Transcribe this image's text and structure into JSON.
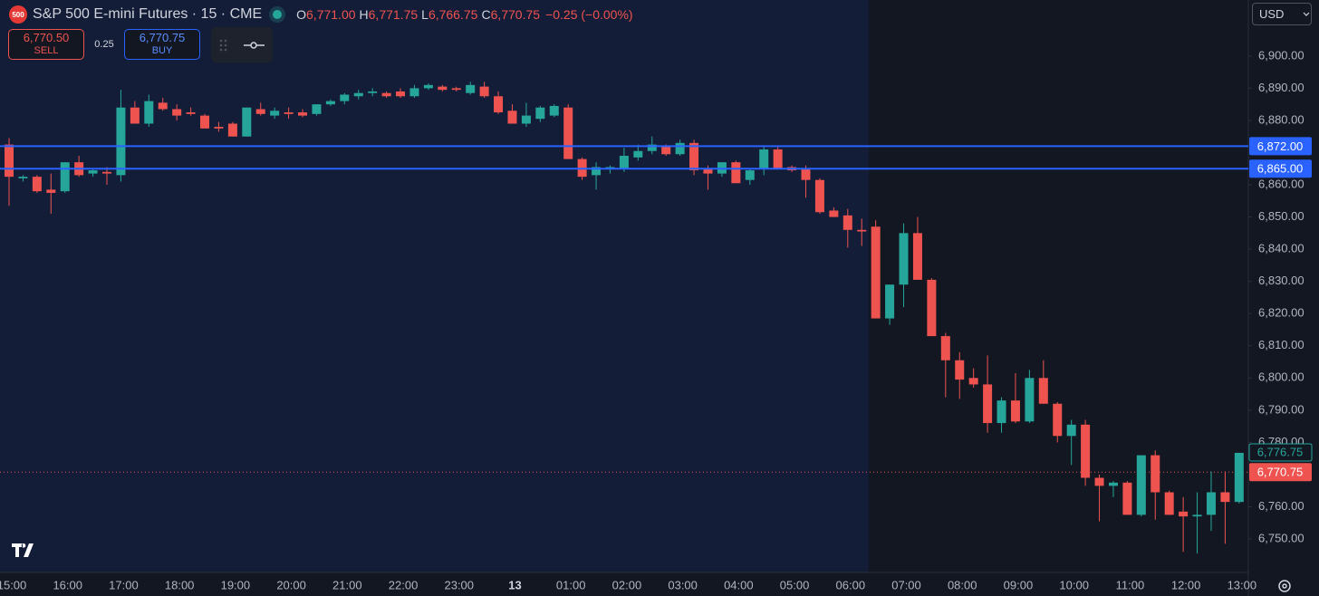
{
  "header": {
    "icon": "500",
    "symbol_title": "S&P 500 E-mini Futures · 15 · CME",
    "ohlc": [
      {
        "key": "O",
        "value": "6,771.00"
      },
      {
        "key": "H",
        "value": "6,771.75"
      },
      {
        "key": "L",
        "value": "6,766.75"
      },
      {
        "key": "C",
        "value": "6,770.75"
      }
    ],
    "change": "−0.25 (−0.00%)",
    "sell_price": "6,770.50",
    "sell": "SELL",
    "spread": "0.25",
    "buy_price": "6,770.75",
    "buy": "BUY",
    "currency": "USD"
  },
  "chart_data": {
    "type": "candlestick",
    "up_color": "#26a69a",
    "down_color": "#ef5350",
    "categories": [
      "15:00",
      null,
      null,
      null,
      "16:00",
      null,
      null,
      null,
      "17:00",
      null,
      null,
      null,
      "18:00",
      null,
      null,
      null,
      "19:00",
      null,
      null,
      null,
      "20:00",
      null,
      null,
      null,
      "21:00",
      null,
      null,
      null,
      "22:00",
      null,
      null,
      null,
      "23:00",
      null,
      null,
      null,
      "13",
      null,
      null,
      null,
      "01:00",
      null,
      null,
      null,
      "02:00",
      null,
      null,
      null,
      "03:00",
      null,
      null,
      null,
      "04:00",
      null,
      null,
      null,
      "05:00",
      null,
      null,
      null,
      "06:00",
      null,
      null,
      null,
      "07:00",
      null,
      null,
      null,
      "08:00",
      null,
      null,
      null,
      "09:00",
      null,
      null,
      null,
      "10:00",
      null,
      null,
      null,
      "11:00",
      null,
      null,
      null,
      "12:00",
      null,
      null,
      null,
      "13:00"
    ],
    "open": [
      6872.5,
      6862,
      6862.5,
      6858.5,
      6858,
      6867,
      6863.5,
      6864,
      6863,
      6884,
      6879,
      6885.5,
      6883.5,
      6882.5,
      6881.5,
      6878,
      6879,
      6875,
      6883.5,
      6881.5,
      6882.5,
      6882.5,
      6882,
      6885,
      6886,
      6887.5,
      6888.5,
      6888.5,
      6889,
      6887.5,
      6890,
      6890.5,
      6890,
      6888.5,
      6890.5,
      6887.5,
      6883,
      6879,
      6880.5,
      6881.5,
      6884,
      6868,
      6863,
      6865,
      6865,
      6868.5,
      6870.5,
      6872,
      6869.5,
      6873,
      6865,
      6863.5,
      6867,
      6861.5,
      6865,
      6871,
      6865.5,
      6865,
      6861.5,
      6852,
      6850.5,
      6846,
      6847,
      6818.5,
      6829,
      6845,
      6830.5,
      6813,
      6805.5,
      6800,
      6798,
      6786,
      6793,
      6786.5,
      6800,
      6792,
      6782,
      6785.5,
      6769,
      6766.5,
      6767.5,
      6757.5,
      6776,
      6764.5,
      6758.5,
      6757,
      6757.5,
      6764.5,
      6761.5
    ],
    "high": [
      6874.5,
      6863,
      6863,
      6863.5,
      6867,
      6869,
      6865,
      6865.5,
      6889.5,
      6886,
      6888,
      6887,
      6885,
      6884,
      6882,
      6879.5,
      6879.5,
      6884,
      6885.5,
      6884,
      6884,
      6883.5,
      6885,
      6886.5,
      6888.5,
      6889.5,
      6890,
      6889,
      6890,
      6891,
      6891.5,
      6891,
      6890.5,
      6892,
      6892,
      6889,
      6885,
      6885.5,
      6884.5,
      6885,
      6885,
      6868.5,
      6867,
      6866,
      6871.5,
      6872.5,
      6875,
      6872.5,
      6874,
      6874,
      6866,
      6867,
      6867.5,
      6865,
      6872,
      6872,
      6866,
      6866,
      6862,
      6853,
      6852.5,
      6849.5,
      6849,
      6829,
      6848,
      6850,
      6831,
      6814,
      6808,
      6803,
      6807,
      6794,
      6801.5,
      6802.5,
      6805.5,
      6792.5,
      6787,
      6787,
      6770,
      6768,
      6768,
      6776,
      6777.5,
      6765,
      6763,
      6764.5,
      6771,
      6771,
      6776.75
    ],
    "low": [
      6853.5,
      6861,
      6857.5,
      6851,
      6857.5,
      6862.5,
      6862.5,
      6860,
      6861,
      6879,
      6878,
      6883,
      6880,
      6881.5,
      6877.5,
      6876.5,
      6875,
      6875,
      6881.5,
      6880.5,
      6880.5,
      6881,
      6881.5,
      6884.5,
      6885,
      6886.5,
      6887.5,
      6887,
      6887,
      6887,
      6889.5,
      6889,
      6889,
      6888,
      6887,
      6882,
      6879,
      6878,
      6879.5,
      6881,
      6868,
      6861.5,
      6858.5,
      6863.5,
      6864,
      6867.5,
      6869.5,
      6869,
      6869,
      6863,
      6858.5,
      6862.5,
      6860.5,
      6860,
      6863,
      6865,
      6864,
      6856,
      6851,
      6850,
      6840.5,
      6841,
      6818.5,
      6816.5,
      6822,
      6830.5,
      6813,
      6794,
      6793.5,
      6797,
      6783,
      6783,
      6786,
      6786,
      6792,
      6780,
      6773,
      6766.5,
      6755.5,
      6763,
      6757.5,
      6757,
      6756,
      6757.5,
      6746,
      6745.5,
      6752.5,
      6748.5,
      6761
    ],
    "close": [
      6862.5,
      6862.5,
      6858,
      6857.5,
      6867,
      6863,
      6864.5,
      6863.5,
      6884,
      6879,
      6886,
      6883.5,
      6881.5,
      6882,
      6877.5,
      6877.5,
      6875,
      6884,
      6882,
      6883,
      6882,
      6881.5,
      6885,
      6886,
      6888,
      6888.5,
      6889,
      6887.5,
      6887.5,
      6890,
      6891,
      6889.5,
      6889.5,
      6891,
      6887.5,
      6882.5,
      6879,
      6881.5,
      6884,
      6884.5,
      6868,
      6862.5,
      6865.5,
      6865.5,
      6869,
      6870.5,
      6872.5,
      6869.5,
      6873,
      6864.5,
      6863.5,
      6867,
      6860.5,
      6864.5,
      6871,
      6865,
      6864.5,
      6861.5,
      6851.5,
      6850,
      6846,
      6845.5,
      6818.5,
      6829,
      6845,
      6830.5,
      6813,
      6805.5,
      6799.5,
      6798,
      6786,
      6793,
      6786.5,
      6800,
      6792,
      6782,
      6785.5,
      6769,
      6766.5,
      6767.5,
      6757.5,
      6776,
      6764.5,
      6757.5,
      6757,
      6757.5,
      6764.5,
      6761.5,
      6776.75
    ],
    "ylim": [
      6739.6,
      6917.4
    ],
    "yticks": [
      {
        "value": 6750,
        "label": "6,750.00"
      },
      {
        "value": 6760,
        "label": "6,760.00"
      },
      {
        "value": 6770,
        "label": "6,770.00"
      },
      {
        "value": 6780,
        "label": "6,780.00"
      },
      {
        "value": 6790,
        "label": "6,790.00"
      },
      {
        "value": 6800,
        "label": "6,800.00"
      },
      {
        "value": 6810,
        "label": "6,810.00"
      },
      {
        "value": 6820,
        "label": "6,820.00"
      },
      {
        "value": 6830,
        "label": "6,830.00"
      },
      {
        "value": 6840,
        "label": "6,840.00"
      },
      {
        "value": 6850,
        "label": "6,850.00"
      },
      {
        "value": 6860,
        "label": "6,860.00"
      },
      {
        "value": 6880,
        "label": "6,880.00"
      },
      {
        "value": 6890,
        "label": "6,890.00"
      },
      {
        "value": 6900,
        "label": "6,900.00"
      }
    ],
    "hlines": [
      {
        "value": 6872,
        "label": "6,872.00",
        "color": "#2962ff"
      },
      {
        "value": 6865,
        "label": "6,865.00",
        "color": "#2962ff"
      }
    ],
    "last_price": {
      "value": 6776.75,
      "label": "6,776.75",
      "color": "#26a69a"
    },
    "current_price": {
      "value": 6770.75,
      "label": "6,770.75",
      "color": "#ef5350"
    }
  }
}
